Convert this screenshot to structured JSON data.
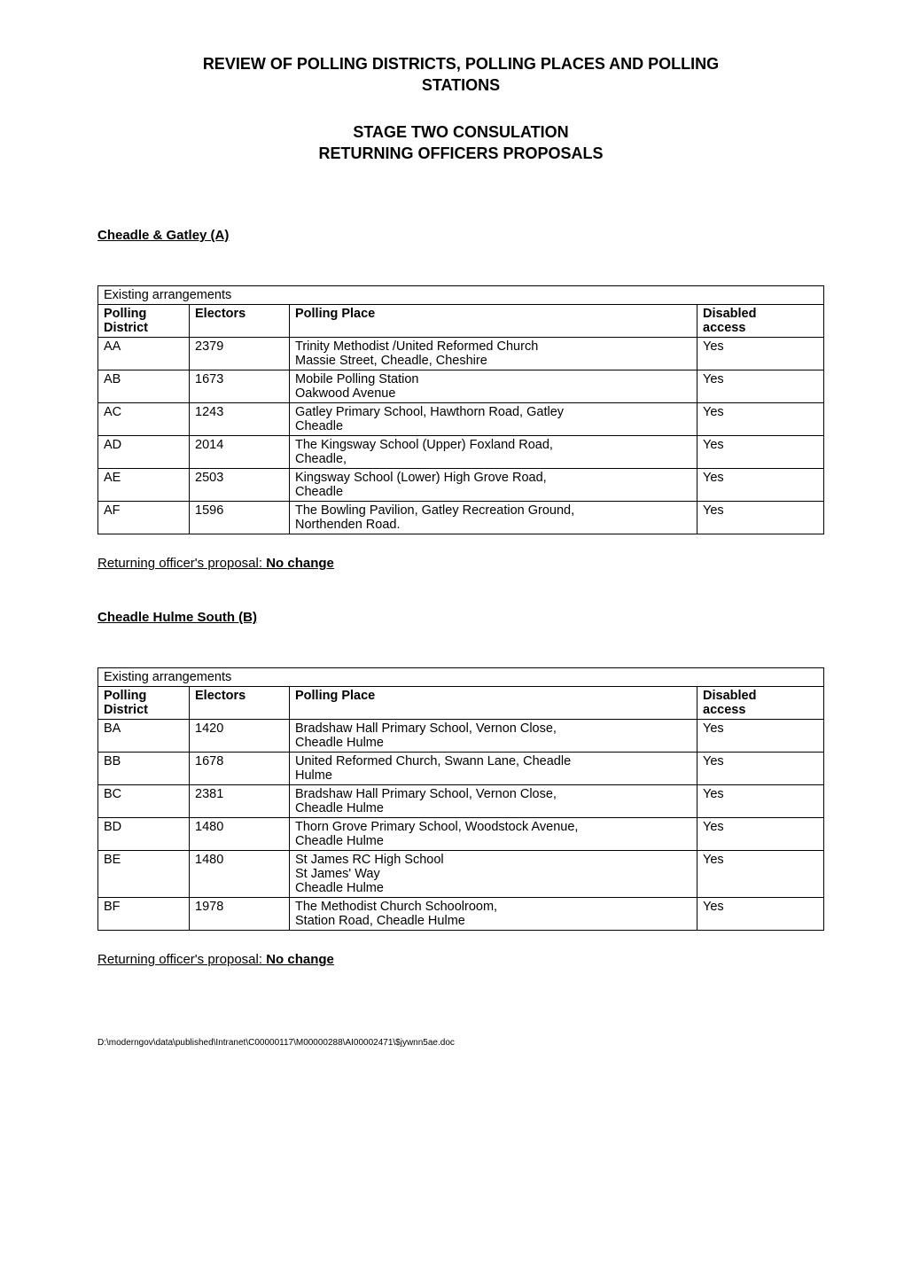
{
  "title_lines": [
    "REVIEW OF POLLING DISTRICTS, POLLING PLACES AND POLLING",
    "STATIONS"
  ],
  "subtitle_lines": [
    "STAGE TWO CONSULATION",
    "RETURNING OFFICERS PROPOSALS"
  ],
  "proposal_prefix": "Returning officer's proposal: ",
  "proposal_value": "No change",
  "footer_path": "D:\\moderngov\\data\\published\\Intranet\\C00000117\\M00000288\\AI00002471\\$jywnn5ae.doc",
  "tables_caption": "Existing arrangements",
  "columns": [
    "Polling District",
    "Electors",
    "Polling Place",
    "Disabled access"
  ],
  "column_widths": [
    "90px",
    "100px",
    "auto",
    "130px"
  ],
  "colors": {
    "background": "#ffffff",
    "text": "#000000",
    "border": "#000000"
  },
  "typography": {
    "title_fontsize": 18,
    "body_fontsize": 14.5,
    "heading_fontsize": 15,
    "footer_fontsize": 10,
    "font_family": "Arial"
  },
  "sections": [
    {
      "heading": "Cheadle & Gatley (A)",
      "rows": [
        {
          "pd": "AA",
          "electors": "2379",
          "place": "Trinity Methodist /United Reformed Church\nMassie Street, Cheadle, Cheshire",
          "disabled": "Yes"
        },
        {
          "pd": "AB",
          "electors": "1673",
          "place": "Mobile Polling Station\nOakwood Avenue",
          "disabled": "Yes"
        },
        {
          "pd": "AC",
          "electors": "1243",
          "place": "Gatley Primary School, Hawthorn Road, Gatley\nCheadle",
          "disabled": "Yes"
        },
        {
          "pd": "AD",
          "electors": "2014",
          "place": "The Kingsway School (Upper) Foxland Road,\nCheadle,",
          "disabled": "Yes"
        },
        {
          "pd": "AE",
          "electors": "2503",
          "place": "Kingsway School (Lower) High Grove Road,\nCheadle",
          "disabled": "Yes"
        },
        {
          "pd": "AF",
          "electors": "1596",
          "place": "The Bowling Pavilion, Gatley Recreation Ground,\nNorthenden Road.",
          "disabled": "Yes"
        }
      ]
    },
    {
      "heading": "Cheadle Hulme South (B)",
      "rows": [
        {
          "pd": "BA",
          "electors": "1420",
          "place": "Bradshaw Hall Primary School, Vernon Close,\nCheadle Hulme",
          "disabled": "Yes"
        },
        {
          "pd": "BB",
          "electors": "1678",
          "place": "United Reformed Church, Swann Lane, Cheadle\nHulme",
          "disabled": "Yes"
        },
        {
          "pd": "BC",
          "electors": "2381",
          "place": "Bradshaw Hall Primary School, Vernon Close,\nCheadle Hulme",
          "disabled": "Yes"
        },
        {
          "pd": "BD",
          "electors": "1480",
          "place": "Thorn Grove Primary School, Woodstock Avenue,\nCheadle Hulme",
          "disabled": "Yes"
        },
        {
          "pd": "BE",
          "electors": "1480",
          "place": "St James RC High School\nSt James' Way\nCheadle Hulme",
          "disabled": "Yes"
        },
        {
          "pd": "BF",
          "electors": "1978",
          "place": "The Methodist Church Schoolroom,\nStation Road, Cheadle Hulme",
          "disabled": "Yes"
        }
      ]
    }
  ]
}
